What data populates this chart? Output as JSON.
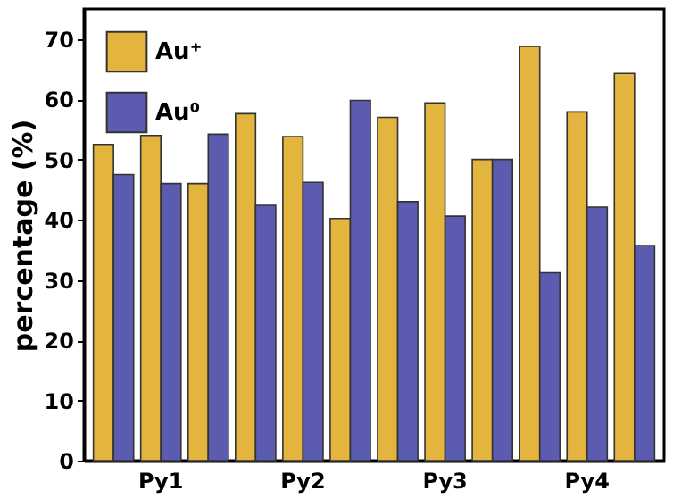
{
  "chart_data": {
    "type": "bar",
    "ylabel": "percentage (%)",
    "categories": [
      null,
      "Py1",
      null,
      null,
      "Py2",
      null,
      null,
      "Py3",
      null,
      null,
      "Py4",
      null
    ],
    "series": [
      {
        "name": "Au⁺",
        "color": "#e3b53f",
        "values": [
          52.5,
          54,
          46,
          57.6,
          53.8,
          40.2,
          57,
          59.4,
          50,
          68.8,
          57.9,
          64.3
        ]
      },
      {
        "name": "Au⁰",
        "color": "#5b5bb0",
        "values": [
          47.5,
          46,
          54.2,
          42.4,
          46.2,
          59.8,
          43,
          40.6,
          50,
          31.2,
          42.1,
          35.7
        ]
      }
    ],
    "ylim": [
      0,
      75
    ],
    "yticks": [
      0,
      10,
      20,
      30,
      40,
      50,
      60,
      70
    ],
    "grid": false,
    "legend": "top left"
  }
}
